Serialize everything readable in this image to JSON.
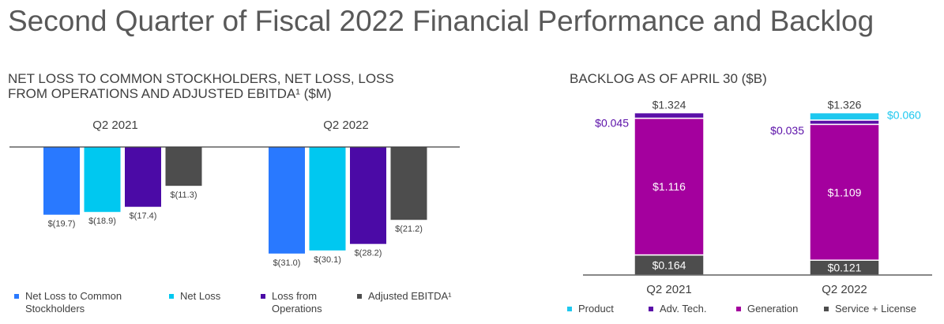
{
  "title": "Second Quarter of Fiscal 2022 Financial Performance and Backlog",
  "left_subtitle_line1": "NET LOSS TO COMMON STOCKHOLDERS, NET LOSS, LOSS",
  "left_subtitle_line2": "FROM OPERATIONS AND ADJUSTED EBITDA¹ ($M)",
  "right_subtitle": "BACKLOG AS OF APRIL 30 ($B)",
  "colors": {
    "net_loss_common": "#2979ff",
    "net_loss": "#00c8f0",
    "loss_ops": "#4b0aa6",
    "adj_ebitda": "#4d4d4d",
    "product": "#1ec8ef",
    "adv_tech": "#5a0fa8",
    "generation": "#a4009e",
    "service": "#4d4d4d"
  },
  "legend_left": [
    {
      "line1": "Net Loss to Common",
      "line2": "Stockholders",
      "icon": "square-blue"
    },
    {
      "line1": "Net Loss",
      "line2": "",
      "icon": "square-cyan"
    },
    {
      "line1": "Loss from",
      "line2": "Operations",
      "icon": "square-purple"
    },
    {
      "line1": "Adjusted EBITDA¹",
      "line2": "",
      "icon": "square-gray"
    }
  ],
  "legend_right": [
    "Product",
    "Adv. Tech.",
    "Generation",
    "Service + License"
  ],
  "chart_data": [
    {
      "type": "bar",
      "title": "NET LOSS TO COMMON STOCKHOLDERS, NET LOSS, LOSS FROM OPERATIONS AND ADJUSTED EBITDA¹ ($M)",
      "categories": [
        "Q2 2021",
        "Q2 2022"
      ],
      "series": [
        {
          "name": "Net Loss to Common Stockholders",
          "values": [
            -19.7,
            -31.0
          ],
          "labels": [
            "$(19.7)",
            "$(31.0)"
          ]
        },
        {
          "name": "Net Loss",
          "values": [
            -18.9,
            -30.1
          ],
          "labels": [
            "$(18.9)",
            "$(30.1)"
          ]
        },
        {
          "name": "Loss from Operations",
          "values": [
            -17.4,
            -28.2
          ],
          "labels": [
            "$(17.4)",
            "$(28.2)"
          ]
        },
        {
          "name": "Adjusted EBITDA¹",
          "values": [
            -11.3,
            -21.2
          ],
          "labels": [
            "$(11.3)",
            "$(21.2)"
          ]
        }
      ],
      "ylim": [
        -31,
        0
      ],
      "legend": "bottom"
    },
    {
      "type": "bar",
      "stacked": true,
      "title": "BACKLOG AS OF APRIL 30 ($B)",
      "categories": [
        "Q2 2021",
        "Q2 2022"
      ],
      "totals": [
        1.324,
        1.326
      ],
      "total_labels": [
        "$1.324",
        "$1.326"
      ],
      "series": [
        {
          "name": "Service + License",
          "values": [
            0.164,
            0.121
          ],
          "labels": [
            "$0.164",
            "$0.121"
          ]
        },
        {
          "name": "Generation",
          "values": [
            1.116,
            1.109
          ],
          "labels": [
            "$1.116",
            "$1.109"
          ]
        },
        {
          "name": "Adv. Tech.",
          "values": [
            0.045,
            0.035
          ],
          "labels": [
            "$0.045",
            "$0.035"
          ]
        },
        {
          "name": "Product",
          "values": [
            0.0,
            0.06
          ],
          "labels": [
            "",
            "$0.060"
          ]
        }
      ],
      "ylim": [
        0,
        1.326
      ],
      "legend": "bottom"
    }
  ]
}
